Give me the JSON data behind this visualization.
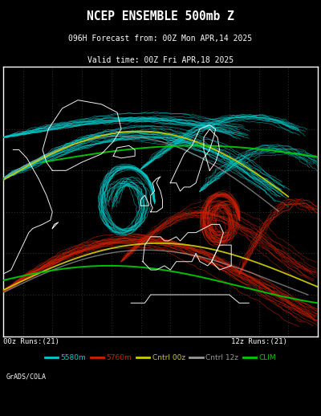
{
  "title_line1": "NCEP ENSEMBLE 500mb Z",
  "title_line2": "096H Forecast from: 00Z Mon APR,14 2025",
  "title_line3": "Valid time: 00Z Fri APR,18 2025",
  "bg_color": "#000000",
  "map_bg": "#000000",
  "map_border_color": "#ffffff",
  "grid_color": "#888888",
  "coastline_color": "#ffffff",
  "cyan_color": "#00cccc",
  "red_color": "#cc2200",
  "yellow_color": "#cccc00",
  "gray_color": "#999999",
  "green_color": "#00cc00",
  "footer_text": "GrADS/COLA",
  "label_00z": "00z Runs:(21)",
  "label_12z": "12z Runs:(21)",
  "legend_items": [
    {
      "label": "5580m",
      "color": "#00cccc"
    },
    {
      "label": "5760m",
      "color": "#cc2200"
    },
    {
      "label": "Cntrl 00z",
      "color": "#cccc00"
    },
    {
      "label": "Cntrl 12z",
      "color": "#999999"
    },
    {
      "label": "CLIM",
      "color": "#00cc00"
    }
  ],
  "figsize": [
    4.0,
    5.18
  ],
  "dpi": 100
}
